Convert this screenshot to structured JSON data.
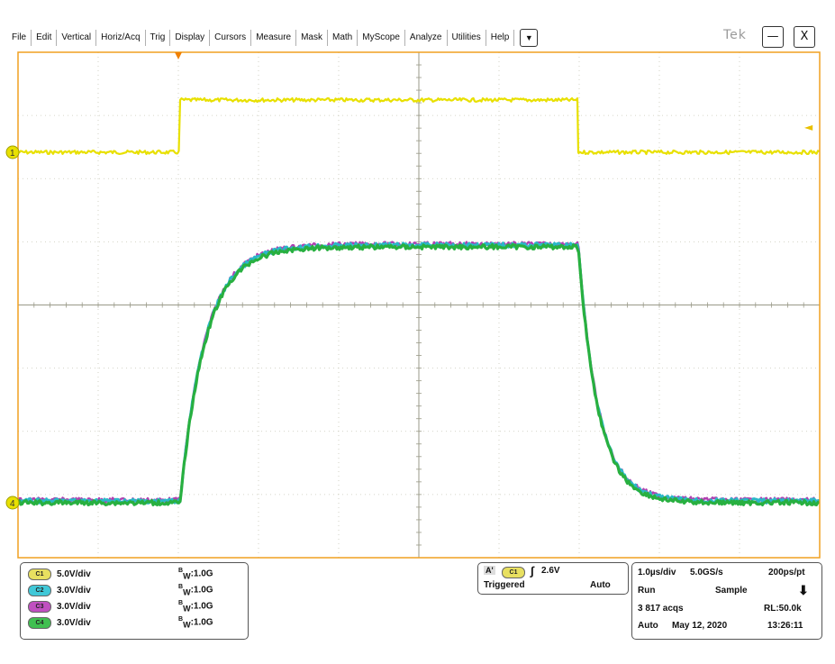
{
  "menu": {
    "items": [
      "File",
      "Edit",
      "Vertical",
      "Horiz/Acq",
      "Trig",
      "Display",
      "Cursors",
      "Measure",
      "Mask",
      "Math",
      "MyScope",
      "Analyze",
      "Utilities",
      "Help"
    ],
    "dropdown_icon": "triangle-down-icon",
    "dropdown_glyph": "▼"
  },
  "brand": "Tek",
  "window": {
    "minimize_glyph": "—",
    "close_glyph": "X"
  },
  "plot": {
    "ch1_marker": "1",
    "ch4_marker": "4",
    "colors": {
      "background": "#ffffff",
      "border": "#f0a020",
      "grid": "#c8c8b8",
      "ch1": "#e8e000",
      "ch2": "#2ab8c8",
      "ch3": "#b040b0",
      "ch4": "#28b040",
      "trigger_marker": "#f08000"
    }
  },
  "channels": [
    {
      "id": "C1",
      "scale": "5.0V/div",
      "bw": "1.0G",
      "color": "#e8e060"
    },
    {
      "id": "C2",
      "scale": "3.0V/div",
      "bw": "1.0G",
      "color": "#40c8d8"
    },
    {
      "id": "C3",
      "scale": "3.0V/div",
      "bw": "1.0G",
      "color": "#c050c0"
    },
    {
      "id": "C4",
      "scale": "3.0V/div",
      "bw": "1.0G",
      "color": "#40c050"
    }
  ],
  "bw_prefix": "B",
  "bw_sub": "W",
  "trigger": {
    "mode_letter": "A'",
    "source": "C1",
    "level": "2.6V",
    "state": "Triggered",
    "mode": "Auto"
  },
  "acquisition": {
    "timebase": "1.0µs/div",
    "sample_rate": "5.0GS/s",
    "resolution": "200ps/pt",
    "state": "Run",
    "mode": "Sample",
    "acqs": "3 817 acqs",
    "record_length": "RL:50.0k",
    "trigger_mode": "Auto",
    "date": "May 12, 2020",
    "time": "13:26:11"
  }
}
